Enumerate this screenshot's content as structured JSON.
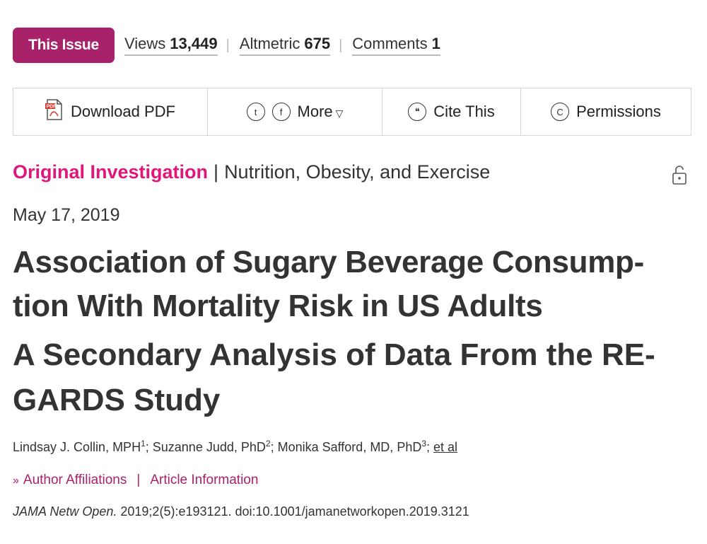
{
  "metrics": {
    "issue_button": "This Issue",
    "views_label": "Views",
    "views_value": "13,449",
    "altmetric_label": "Altmetric",
    "altmetric_value": "675",
    "comments_label": "Comments",
    "comments_value": "1",
    "separator": "|"
  },
  "toolbar": {
    "download_label": "Download PDF",
    "more_label": "More",
    "more_caret": "▽",
    "twitter_icon": "t",
    "facebook_icon": "f",
    "cite_label": "Cite This",
    "cite_icon": "❝",
    "permissions_label": "Permissions",
    "permissions_icon": "C"
  },
  "category": {
    "primary": "Original Investigation",
    "separator": "|",
    "secondary": "Nutrition, Obesity, and Exercise"
  },
  "date": "May 17, 2019",
  "title": "Association of Sugary Beverage Consump-tion With Mortality Risk in US Adults",
  "subtitle": "A Secondary Analysis of Data From the RE-GARDS Study",
  "authors": {
    "a1_name": "Lindsay J. Collin, MPH",
    "a1_sup": "1",
    "a2_name": "; Suzanne Judd, PhD",
    "a2_sup": "2",
    "a3_name": "; Monika Safford, MD, PhD",
    "a3_sup": "3",
    "tail": "; ",
    "et_al": "et al"
  },
  "links": {
    "chevron": "»",
    "affiliations": "Author Affiliations",
    "separator": "|",
    "article_info": "Article Information"
  },
  "citation": {
    "journal": "JAMA Netw Open.",
    "rest": " 2019;2(5):e193121. doi:10.1001/jamanetworkopen.2019.3121"
  },
  "colors": {
    "brand": "#a8226a",
    "category": "#e0177a",
    "text": "#333333"
  }
}
